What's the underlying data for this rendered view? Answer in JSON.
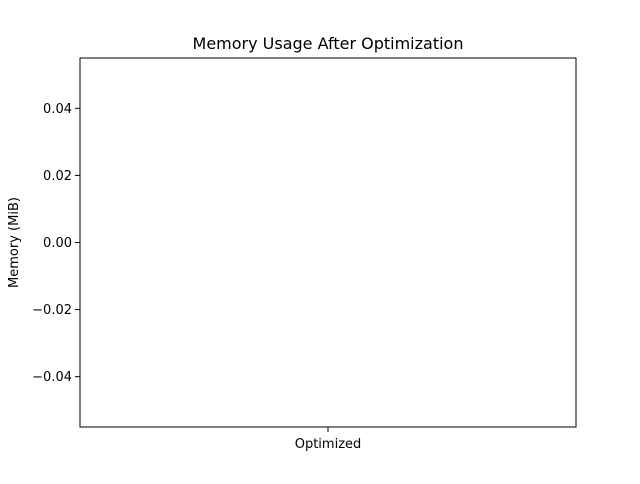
{
  "chart_data": {
    "type": "bar",
    "title": "Memory Usage After Optimization",
    "xlabel": "",
    "ylabel": "Memory (MiB)",
    "categories": [
      "Optimized"
    ],
    "values": [
      0
    ],
    "ylim": [
      -0.055,
      0.055
    ],
    "yticks": [
      0.04,
      0.02,
      0.0,
      -0.02,
      -0.04
    ],
    "ytick_labels": [
      "0.04",
      "0.02",
      "0.00",
      "−0.02",
      "−0.04"
    ],
    "grid": false,
    "legend": "none",
    "colors": {
      "bar": "#1f77b4",
      "axes": "#000000",
      "background": "#ffffff"
    }
  }
}
